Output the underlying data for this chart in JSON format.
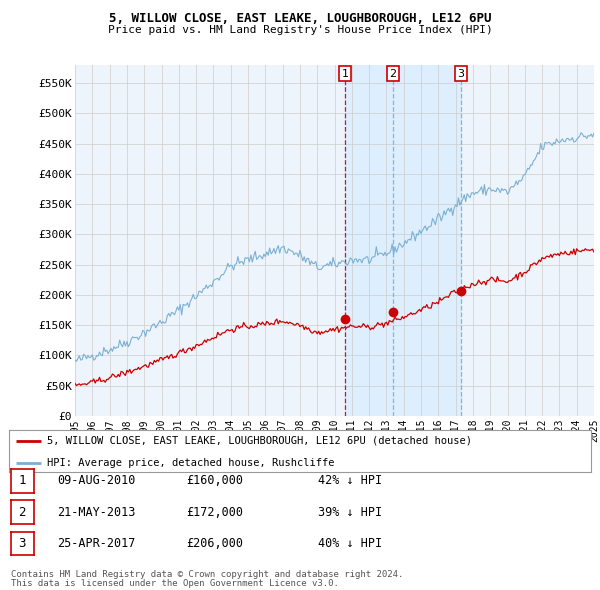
{
  "title1": "5, WILLOW CLOSE, EAST LEAKE, LOUGHBOROUGH, LE12 6PU",
  "title2": "Price paid vs. HM Land Registry's House Price Index (HPI)",
  "hpi_color": "#7ab0d4",
  "price_color": "#cc0000",
  "vline1_color": "#cc0000",
  "vline2_color": "#7ab0d4",
  "vline3_color": "#7ab0d4",
  "shade_color": "#ddeeff",
  "bg_color": "#eef4fb",
  "grid_color": "#cccccc",
  "ylim": [
    0,
    580000
  ],
  "yticks": [
    0,
    50000,
    100000,
    150000,
    200000,
    250000,
    300000,
    350000,
    400000,
    450000,
    500000,
    550000
  ],
  "ytick_labels": [
    "£0",
    "£50K",
    "£100K",
    "£150K",
    "£200K",
    "£250K",
    "£300K",
    "£350K",
    "£400K",
    "£450K",
    "£500K",
    "£550K"
  ],
  "sale_dates": [
    2010.6,
    2013.39,
    2017.32
  ],
  "sale_prices": [
    160000,
    172000,
    206000
  ],
  "sale_labels": [
    "1",
    "2",
    "3"
  ],
  "sale_info": [
    {
      "label": "1",
      "date": "09-AUG-2010",
      "price": "£160,000",
      "hpi": "42% ↓ HPI"
    },
    {
      "label": "2",
      "date": "21-MAY-2013",
      "price": "£172,000",
      "hpi": "39% ↓ HPI"
    },
    {
      "label": "3",
      "date": "25-APR-2017",
      "price": "£206,000",
      "hpi": "40% ↓ HPI"
    }
  ],
  "legend_line1": "5, WILLOW CLOSE, EAST LEAKE, LOUGHBOROUGH, LE12 6PU (detached house)",
  "legend_line2": "HPI: Average price, detached house, Rushcliffe",
  "footer1": "Contains HM Land Registry data © Crown copyright and database right 2024.",
  "footer2": "This data is licensed under the Open Government Licence v3.0.",
  "xtick_years": [
    1995,
    1996,
    1997,
    1998,
    1999,
    2000,
    2001,
    2002,
    2003,
    2004,
    2005,
    2006,
    2007,
    2008,
    2009,
    2010,
    2011,
    2012,
    2013,
    2014,
    2015,
    2016,
    2017,
    2018,
    2019,
    2020,
    2021,
    2022,
    2023,
    2024,
    2025
  ]
}
